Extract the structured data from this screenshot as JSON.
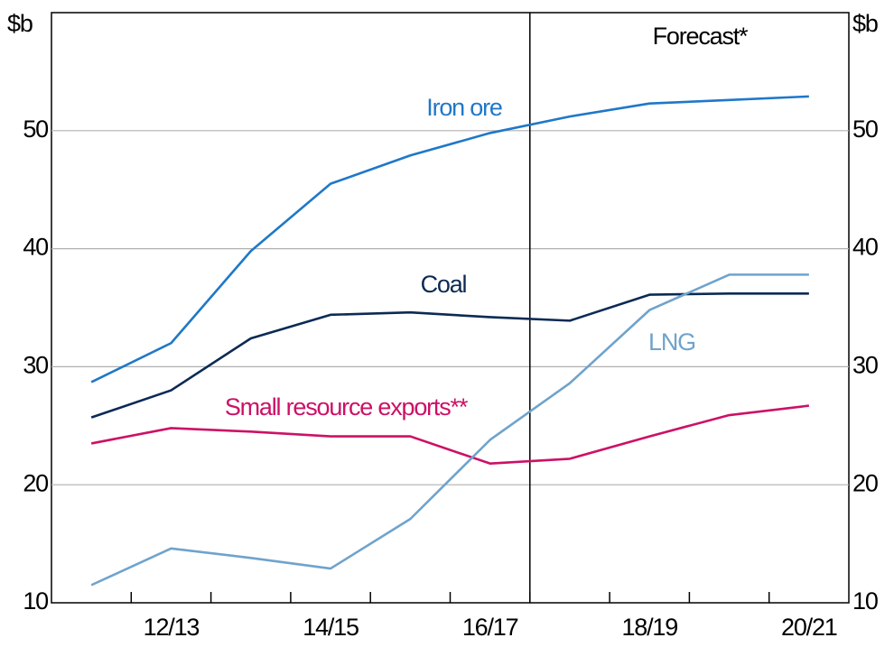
{
  "chart_data": {
    "type": "line",
    "ylabel": "$b",
    "y2label": "$b",
    "categories": [
      null,
      "12/13",
      null,
      "14/15",
      null,
      "16/17",
      null,
      "18/19",
      null,
      "20/21"
    ],
    "series": [
      {
        "name": "Iron ore",
        "color": "#1f78c8",
        "values": [
          28.7,
          32.0,
          39.8,
          45.5,
          47.9,
          49.8,
          51.2,
          52.3,
          52.6,
          52.9
        ]
      },
      {
        "name": "Coal",
        "color": "#0b2a55",
        "values": [
          25.7,
          28.0,
          32.4,
          34.4,
          34.6,
          34.2,
          33.9,
          36.1,
          36.2,
          36.2
        ]
      },
      {
        "name": "Small resource exports**",
        "color": "#cc1166",
        "values": [
          23.5,
          24.8,
          24.5,
          24.1,
          24.1,
          21.8,
          22.2,
          24.1,
          25.9,
          26.7
        ]
      },
      {
        "name": "LNG",
        "color": "#6fa3cc",
        "values": [
          11.5,
          14.6,
          13.8,
          12.9,
          17.1,
          23.8,
          28.6,
          34.8,
          37.8,
          37.8
        ]
      }
    ],
    "annotation": "Forecast*",
    "ylim": [
      10,
      60
    ],
    "yticks": [
      10,
      20,
      30,
      40,
      50
    ],
    "y2lim": [
      10,
      60
    ],
    "y2ticks": [
      10,
      20,
      30,
      40,
      50
    ],
    "grid": true
  }
}
